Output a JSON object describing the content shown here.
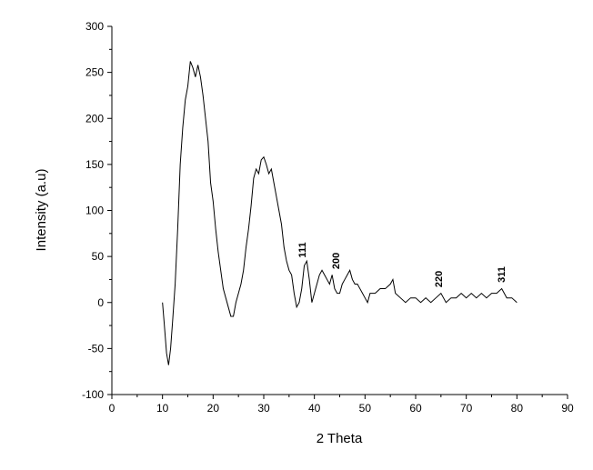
{
  "chart_data": {
    "type": "line",
    "x_label": "2 Theta",
    "y_label": "Intensity (a.u)",
    "xlim": [
      0,
      90
    ],
    "xticks": [
      0,
      10,
      20,
      30,
      40,
      50,
      60,
      70,
      80,
      90
    ],
    "ylim": [
      -100,
      300
    ],
    "yticks": [
      -100,
      -50,
      0,
      50,
      100,
      150,
      200,
      250,
      300
    ],
    "grid": false,
    "annotations": [
      "111",
      "200",
      "220",
      "311"
    ],
    "series": [
      {
        "color": "#000000",
        "x": [
          10,
          10.3,
          10.8,
          11.2,
          11.6,
          12,
          12.5,
          13,
          13.5,
          14,
          14.5,
          15,
          15.5,
          16,
          16.5,
          17,
          17.5,
          18,
          18.5,
          19,
          19.5,
          20,
          20.5,
          21,
          21.5,
          22,
          22.5,
          23,
          23.5,
          24,
          24.5,
          25,
          25.5,
          26,
          26.5,
          27,
          27.5,
          28,
          28.5,
          29,
          29.5,
          30,
          30.5,
          31,
          31.5,
          32,
          32.5,
          33,
          33.5,
          34,
          34.5,
          35,
          35.5,
          36,
          36.5,
          37,
          37.5,
          38,
          38.5,
          39,
          39.5,
          40,
          40.5,
          41,
          41.5,
          42,
          42.5,
          43,
          43.5,
          44,
          44.5,
          45,
          45.5,
          46,
          46.5,
          47,
          47.5,
          48,
          48.5,
          49,
          49.5,
          50,
          50.5,
          51,
          52,
          53,
          54,
          55,
          55.5,
          56,
          57,
          58,
          59,
          60,
          61,
          62,
          63,
          64,
          65,
          65.5,
          66,
          67,
          68,
          69,
          70,
          71,
          72,
          73,
          74,
          75,
          76,
          77,
          77.5,
          78,
          79,
          80
        ],
        "values": [
          0,
          -20,
          -55,
          -68,
          -50,
          -20,
          20,
          80,
          150,
          190,
          220,
          235,
          262,
          255,
          245,
          258,
          245,
          225,
          200,
          175,
          130,
          110,
          80,
          55,
          35,
          15,
          5,
          -5,
          -15,
          -15,
          0,
          10,
          20,
          35,
          60,
          80,
          105,
          135,
          145,
          140,
          155,
          158,
          150,
          140,
          145,
          130,
          115,
          100,
          85,
          60,
          45,
          35,
          30,
          10,
          -5,
          0,
          15,
          40,
          45,
          25,
          0,
          10,
          20,
          30,
          35,
          30,
          25,
          20,
          30,
          15,
          10,
          10,
          20,
          25,
          30,
          35,
          25,
          20,
          20,
          15,
          10,
          5,
          0,
          10,
          10,
          15,
          15,
          20,
          25,
          10,
          5,
          0,
          5,
          5,
          0,
          5,
          0,
          5,
          10,
          5,
          0,
          5,
          5,
          10,
          5,
          10,
          5,
          10,
          5,
          10,
          10,
          15,
          10,
          5,
          5,
          0
        ]
      }
    ]
  }
}
